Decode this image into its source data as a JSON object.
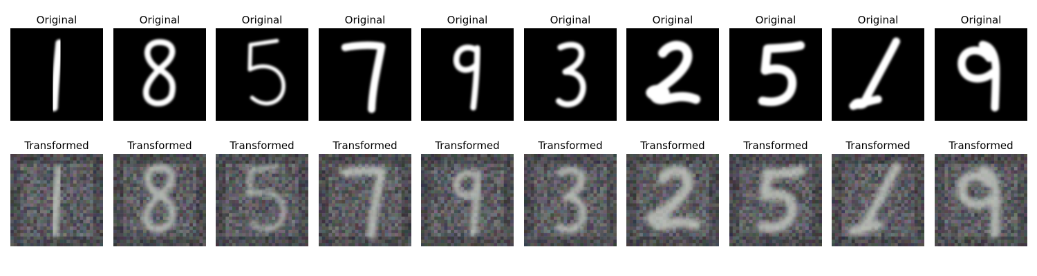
{
  "rows": [
    {
      "title": "Original"
    },
    {
      "title": "Transformed"
    }
  ],
  "panels": [
    {
      "digit": "1"
    },
    {
      "digit": "8"
    },
    {
      "digit": "5"
    },
    {
      "digit": "7"
    },
    {
      "digit": "9"
    },
    {
      "digit": "3"
    },
    {
      "digit": "2"
    },
    {
      "digit": "5"
    },
    {
      "digit": "1"
    },
    {
      "digit": "9"
    }
  ]
}
